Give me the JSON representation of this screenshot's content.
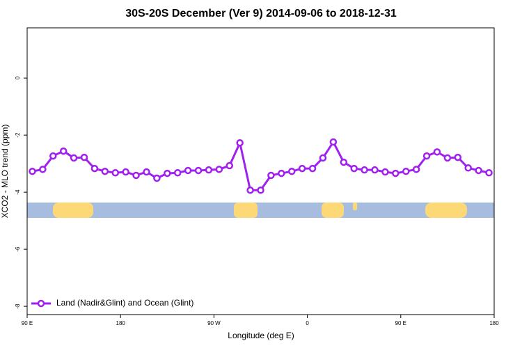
{
  "chart_data": {
    "type": "line",
    "title": "30S-20S December (Ver 9)   2014-09-06 to 2018-12-31",
    "x_label": "Longitude (deg E)",
    "y_label": "XCO2 - MLO trend (ppm)",
    "x": [
      95,
      105,
      115,
      125,
      135,
      145,
      155,
      165,
      175,
      185,
      195,
      205,
      215,
      225,
      235,
      245,
      255,
      265,
      275,
      285,
      295,
      305,
      315,
      325,
      335,
      345,
      355,
      365,
      375,
      385,
      395,
      405,
      415,
      425,
      435,
      445,
      455,
      465,
      475,
      485,
      495,
      505,
      515,
      525,
      535
    ],
    "series": [
      {
        "name": "Land (Nadir&Glint) and Ocean (Glint)",
        "color": "#a020f0",
        "values": [
          -3.27,
          -3.2,
          -2.73,
          -2.56,
          -2.8,
          -2.78,
          -3.17,
          -3.27,
          -3.32,
          -3.29,
          -3.41,
          -3.29,
          -3.51,
          -3.34,
          -3.32,
          -3.24,
          -3.24,
          -3.22,
          -3.2,
          -3.07,
          -2.27,
          -3.93,
          -3.93,
          -3.41,
          -3.34,
          -3.27,
          -3.17,
          -3.17,
          -2.8,
          -2.24,
          -2.95,
          -3.17,
          -3.22,
          -3.22,
          -3.29,
          -3.34,
          -3.27,
          -3.2,
          -2.73,
          -2.59,
          -2.8,
          -2.78,
          -3.15,
          -3.24,
          -3.32
        ]
      }
    ],
    "xlim": [
      90,
      540
    ],
    "xticks": [
      {
        "value": 90,
        "label": "90 E"
      },
      {
        "value": 180,
        "label": "180"
      },
      {
        "value": 270,
        "label": "90 W"
      },
      {
        "value": 360,
        "label": "0"
      },
      {
        "value": 450,
        "label": "90 E"
      },
      {
        "value": 540,
        "label": "180"
      }
    ],
    "ylim": [
      -8.29,
      1.76
    ],
    "yticks": [
      -8,
      -6,
      -4,
      -2,
      0
    ],
    "legend": "bottom-left"
  }
}
